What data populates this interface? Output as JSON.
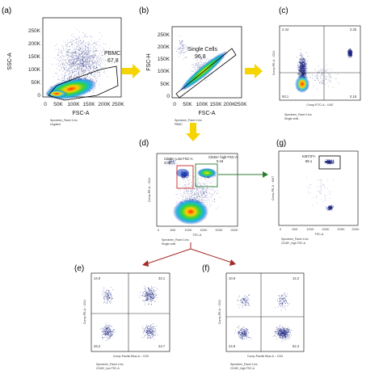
{
  "panels": {
    "a": {
      "letter": "(a)",
      "y_label": "SSC-A",
      "x_label": "FSC-A",
      "y_ticks": [
        "250K",
        "200K",
        "150K",
        "100K",
        "50K",
        "0"
      ],
      "x_ticks": [
        "0",
        "50K",
        "100K",
        "150K",
        "200K",
        "250K"
      ],
      "gate_name": "PBMC",
      "gate_value": "67,8",
      "footer": [
        "Specimen_Panel 1.fcs",
        "Ungated"
      ]
    },
    "b": {
      "letter": "(b)",
      "y_label": "FSC-H",
      "x_label": "FSC-A",
      "y_ticks": [
        "250K",
        "200K",
        "150K",
        "100K",
        "50K",
        "0"
      ],
      "x_ticks": [
        "0",
        "50K",
        "100K",
        "150K",
        "200K",
        "250K"
      ],
      "gate_name": "Single Cells",
      "gate_value": "96,8",
      "footer": [
        "Specimen_Panel 1.fcs",
        "PBMC"
      ]
    },
    "c": {
      "letter": "(c)",
      "y_label": "Comp-PE-A :: CD4",
      "x_label": "Comp-FITC-A :: KI67",
      "quadrants": [
        "2.44",
        "2.25",
        "93.1",
        "0.18"
      ],
      "footer": [
        "Specimen_Panel 1.fcs",
        "Single cells"
      ]
    },
    "d": {
      "letter": "(d)",
      "y_label": "Comp-PE-A :: CD4",
      "x_label": "FSC-A",
      "gate_low_name": "CD45+ Low FSC-A",
      "gate_low_value": "2.08",
      "gate_high_name": "CD45+ high FSC-A",
      "gate_high_value": "5.16",
      "x_ticks": [
        "0",
        "50K",
        "100K",
        "150K",
        "200K",
        "250K"
      ],
      "footer": [
        "Specimen_Panel 1.fcs",
        "Single cells"
      ]
    },
    "g": {
      "letter": "(g)",
      "y_label": "Comp-PE-A :: KI67",
      "x_label": "FSC-A",
      "gate_name": "KI67/37+",
      "gate_value": "86.1",
      "x_ticks": [
        "0",
        "50K",
        "100K",
        "150K",
        "200K",
        "250K"
      ],
      "footer": [
        "Specimen_Panel 1.fcs",
        "CD45+_high FSC-A"
      ]
    },
    "e": {
      "letter": "(e)",
      "y_label": "Comp-PE-A :: CD4",
      "x_label": "Comp-Pacific Blue-A :: CD3",
      "quadrants": [
        "14.0",
        "33.1",
        "28.2",
        "24.7"
      ],
      "footer": [
        "Specimen_Panel 1.fcs",
        "CD45+_low FSC-A"
      ]
    },
    "f": {
      "letter": "(f)",
      "y_label": "Comp-PE-A :: CD4",
      "x_label": "Comp-Pacific Blue-A :: CD3",
      "quadrants": [
        "10.6",
        "12.2",
        "24.9",
        "52.3"
      ],
      "footer": [
        "Specimen_Panel 1.fcs",
        "CD45+_high FSC-A"
      ]
    }
  },
  "colors": {
    "arrow_yellow": "#f5d400",
    "arrow_green": "#2e7d32",
    "arrow_red": "#a52a2a",
    "gate_red": "#c62828",
    "gate_green": "#2e7d32",
    "dot": "#1a237e"
  }
}
